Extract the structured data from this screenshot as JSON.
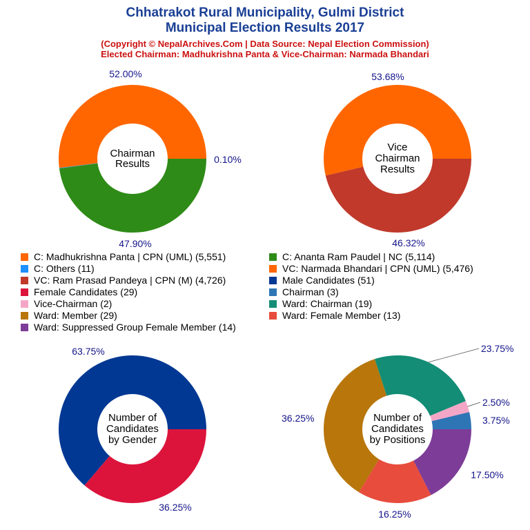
{
  "header": {
    "title_line1": "Chhatrakot Rural Municipality, Gulmi District",
    "title_line2": "Municipal Election Results 2017",
    "subtitle_line1": "(Copyright © NepalArchives.Com | Data Source: Nepal Election Commission)",
    "subtitle_line2": "Elected Chairman: Madhukrishna Panta & Vice-Chairman: Narmada Bhandari"
  },
  "legend": [
    {
      "label": "C: Madhukrishna Panta | CPN (UML) (5,551)",
      "color": "#ff6600"
    },
    {
      "label": "C: Ananta Ram Paudel | NC (5,114)",
      "color": "#2e8b17"
    },
    {
      "label": "C: Others (11)",
      "color": "#1e90ff"
    },
    {
      "label": "VC: Narmada Bhandari | CPN (UML) (5,476)",
      "color": "#ff6600"
    },
    {
      "label": "VC: Ram Prasad Pandeya | CPN (M) (4,726)",
      "color": "#c0392b"
    },
    {
      "label": "Male Candidates (51)",
      "color": "#003893"
    },
    {
      "label": "Female Candidates (29)",
      "color": "#dc143c"
    },
    {
      "label": "Chairman (3)",
      "color": "#2e75b6"
    },
    {
      "label": "Vice-Chairman (2)",
      "color": "#f4a6c6"
    },
    {
      "label": "Ward: Chairman (19)",
      "color": "#138d75"
    },
    {
      "label": "Ward: Member (29)",
      "color": "#b8760b"
    },
    {
      "label": "Ward: Female Member (13)",
      "color": "#e74c3c"
    },
    {
      "label": "Ward: Suppressed Group Female Member (14)",
      "color": "#7d3c98"
    }
  ],
  "chart_data": [
    {
      "type": "pie",
      "center_text": [
        "Chairman",
        "Results"
      ],
      "slices": [
        {
          "name": "C: Madhukrishna Panta | CPN (UML)",
          "value": 5551,
          "label": "52.00%",
          "color": "#ff6600"
        },
        {
          "name": "C: Others",
          "value": 11,
          "label": "0.10%",
          "color": "#1e90ff"
        },
        {
          "name": "C: Ananta Ram Paudel | NC",
          "value": 5114,
          "label": "47.90%",
          "color": "#2e8b17"
        }
      ]
    },
    {
      "type": "pie",
      "center_text": [
        "Vice",
        "Chairman",
        "Results"
      ],
      "slices": [
        {
          "name": "VC: Narmada Bhandari | CPN (UML)",
          "value": 5476,
          "label": "53.68%",
          "color": "#ff6600"
        },
        {
          "name": "VC: Ram Prasad Pandeya | CPN (M)",
          "value": 4726,
          "label": "46.32%",
          "color": "#c0392b"
        }
      ]
    },
    {
      "type": "pie",
      "center_text": [
        "Number of",
        "Candidates",
        "by Gender"
      ],
      "slices": [
        {
          "name": "Male Candidates",
          "value": 51,
          "label": "63.75%",
          "color": "#003893"
        },
        {
          "name": "Female Candidates",
          "value": 29,
          "label": "36.25%",
          "color": "#dc143c"
        }
      ]
    },
    {
      "type": "pie",
      "center_text": [
        "Number of",
        "Candidates",
        "by Positions"
      ],
      "slices": [
        {
          "name": "Chairman",
          "value": 3,
          "label": "3.75%",
          "color": "#2e75b6"
        },
        {
          "name": "Vice-Chairman",
          "value": 2,
          "label": "2.50%",
          "color": "#f4a6c6"
        },
        {
          "name": "Ward: Chairman",
          "value": 19,
          "label": "23.75%",
          "color": "#138d75"
        },
        {
          "name": "Ward: Member",
          "value": 29,
          "label": "36.25%",
          "color": "#b8760b"
        },
        {
          "name": "Ward: Female Member",
          "value": 13,
          "label": "16.25%",
          "color": "#e74c3c"
        },
        {
          "name": "Ward: Suppressed Group Female Member",
          "value": 14,
          "label": "17.50%",
          "color": "#7d3c98"
        }
      ]
    }
  ]
}
